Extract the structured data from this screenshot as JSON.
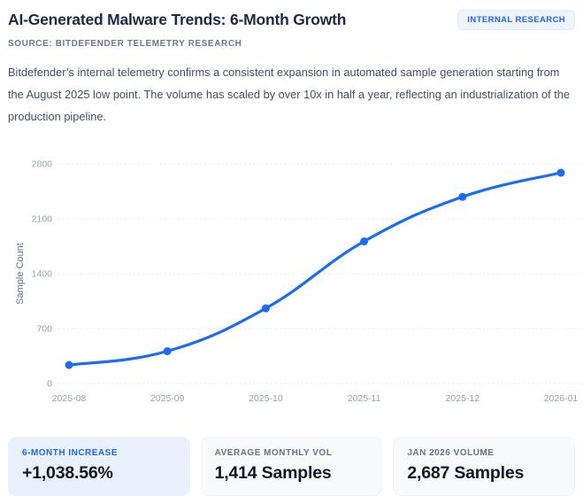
{
  "header": {
    "title": "AI-Generated Malware Trends: 6-Month Growth",
    "badge": "INTERNAL RESEARCH",
    "source": "SOURCE: BITDEFENDER TELEMETRY RESEARCH"
  },
  "description": "Bitdefender’s internal telemetry confirms a consistent expansion in automated sample generation starting from the August 2025 low point. The volume has scaled by over 10x in half a year, reflecting an industrialization of the production pipeline.",
  "chart_data": {
    "type": "line",
    "categories": [
      "2025-08",
      "2025-09",
      "2025-10",
      "2025-11",
      "2025-12",
      "2026-01"
    ],
    "series": [
      {
        "name": "Sample Count",
        "values": [
          236,
          412,
          958,
          1812,
          2379,
          2687
        ]
      }
    ],
    "title": "",
    "xlabel": "",
    "ylabel": "Sample Count",
    "ylim": [
      0,
      2800
    ],
    "yticks": [
      0,
      700,
      1400,
      2100,
      2800
    ],
    "grid": "horizontal-dotted",
    "legend": "none",
    "line_color": "#1b6cf2",
    "point_color": "#1b6cf2",
    "point_radius": 4.5,
    "grid_color": "#e4e9f1",
    "tick_color": "#94a3b8",
    "axis_title_color": "#64748b"
  },
  "stats": [
    {
      "label": "6-MONTH INCREASE",
      "value": "+1,038.56%"
    },
    {
      "label": "AVERAGE MONTHLY VOL",
      "value": "1,414 Samples"
    },
    {
      "label": "JAN 2026 VOLUME",
      "value": "2,687 Samples"
    }
  ]
}
